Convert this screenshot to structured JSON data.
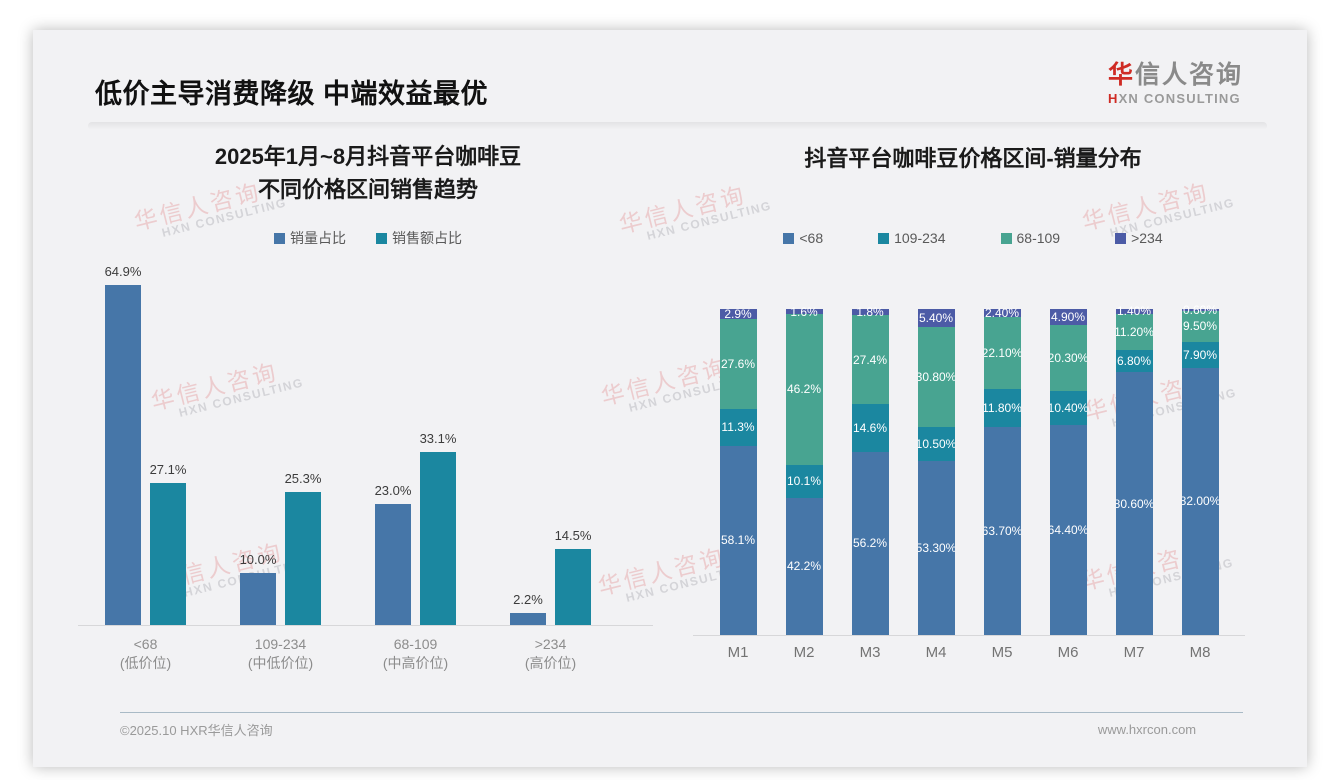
{
  "slide": {
    "title": "低价主导消费降级 中端效益最优",
    "logo": {
      "cn_first": "华",
      "cn_rest": "信人咨询",
      "en_first": "H",
      "en_rest": "XN CONSULTING"
    },
    "watermark": {
      "line1": "华信人咨询",
      "line2": "HXN CONSULTING"
    },
    "footer": {
      "left": "©2025.10 HXR华信人咨询",
      "right": "www.hxrcon.com"
    }
  },
  "colors": {
    "slide_bg": "#f2f2f4",
    "logo_red": "#cf2b24",
    "blue": "#4676a8",
    "teal": "#1b87a0",
    "green": "#48a491",
    "dark_slate": "#4c5ba6",
    "watermark_pink": "#ecccce",
    "axis_line": "#d7d7d9",
    "footer_rule": "#a9bac6"
  },
  "chart_data": [
    {
      "type": "bar",
      "title": "2025年1月~8月抖音平台咖啡豆 不同价格区间销售趋势",
      "title_lines": [
        "2025年1月~8月抖音平台咖啡豆",
        "不同价格区间销售趋势"
      ],
      "categories": [
        [
          "<68",
          "(低价位)"
        ],
        [
          "109-234",
          "(中低价位)"
        ],
        [
          "68-109",
          "(中高价位)"
        ],
        [
          ">234",
          "(高价位)"
        ]
      ],
      "series": [
        {
          "name": "销量占比",
          "color": "#4676a8",
          "values": [
            64.9,
            10.0,
            23.0,
            2.2
          ],
          "labels": [
            "64.9%",
            "10.0%",
            "23.0%",
            "2.2%"
          ]
        },
        {
          "name": "销售额占比",
          "color": "#1b87a0",
          "values": [
            27.1,
            25.3,
            33.1,
            14.5
          ],
          "labels": [
            "27.1%",
            "25.3%",
            "33.1%",
            "14.5%"
          ]
        }
      ],
      "ylabel": "",
      "xlabel": "",
      "ylim": [
        0,
        70
      ],
      "grid": false,
      "legend_position": "top",
      "value_labels": "above-bars"
    },
    {
      "type": "bar",
      "subtype": "stacked-100-percent",
      "title": "抖音平台咖啡豆价格区间-销量分布",
      "categories": [
        "M1",
        "M2",
        "M3",
        "M4",
        "M5",
        "M6",
        "M7",
        "M8"
      ],
      "stack_order_bottom_to_top": [
        "<68",
        "109-234",
        "68-109",
        ">234"
      ],
      "series": [
        {
          "name": "<68",
          "color": "#4676a8",
          "values": [
            58.1,
            42.2,
            56.2,
            53.3,
            63.7,
            64.4,
            80.6,
            82.0
          ],
          "labels": [
            "58.1%",
            "42.2%",
            "56.2%",
            "53.30%",
            "63.70%",
            "64.40%",
            "80.60%",
            "82.00%"
          ]
        },
        {
          "name": "109-234",
          "color": "#1b87a0",
          "values": [
            11.3,
            10.1,
            14.6,
            10.5,
            11.8,
            10.4,
            6.8,
            7.9
          ],
          "labels": [
            "11.3%",
            "10.1%",
            "14.6%",
            "10.50%",
            "11.80%",
            "10.40%",
            "6.80%",
            "7.90%"
          ]
        },
        {
          "name": "68-109",
          "color": "#48a491",
          "values": [
            27.6,
            46.2,
            27.4,
            30.8,
            22.1,
            20.3,
            11.2,
            9.5
          ],
          "labels": [
            "27.6%",
            "46.2%",
            "27.4%",
            "30.80%",
            "22.10%",
            "20.30%",
            "11.20%",
            "9.50%"
          ]
        },
        {
          "name": ">234",
          "color": "#4c5ba6",
          "values": [
            2.9,
            1.6,
            1.8,
            5.4,
            2.4,
            4.9,
            1.4,
            0.6
          ],
          "labels": [
            "2.9%",
            "1.6%",
            "1.8%",
            "5.40%",
            "2.40%",
            "4.90%",
            "1.40%",
            "0.60%"
          ]
        }
      ],
      "ylabel": "",
      "xlabel": "",
      "ylim": [
        0,
        100
      ],
      "grid": false,
      "legend_position": "top",
      "value_labels": "inside-segments-white"
    }
  ]
}
